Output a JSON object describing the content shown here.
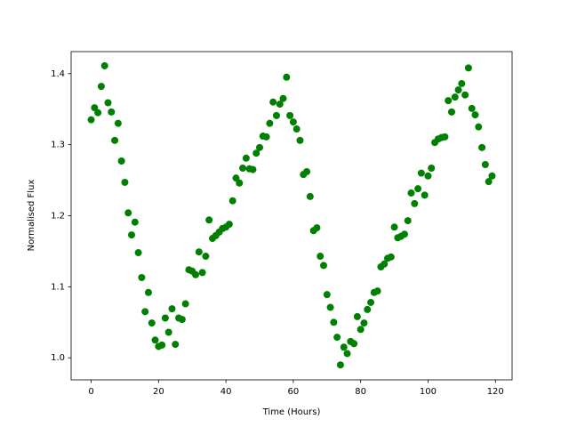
{
  "chart_data": {
    "type": "scatter",
    "xlabel": "Time (Hours)",
    "ylabel": "Normalised Flux",
    "x": [
      0,
      1,
      2,
      3,
      4,
      5,
      6,
      7,
      8,
      9,
      10,
      11,
      12,
      13,
      14,
      15,
      16,
      17,
      18,
      19,
      20,
      21,
      22,
      23,
      24,
      25,
      26,
      27,
      28,
      29,
      30,
      31,
      32,
      33,
      34,
      35,
      36,
      37,
      38,
      39,
      40,
      41,
      42,
      43,
      44,
      45,
      46,
      47,
      48,
      49,
      50,
      51,
      52,
      53,
      54,
      55,
      56,
      57,
      58,
      59,
      60,
      61,
      62,
      63,
      64,
      65,
      66,
      67,
      68,
      69,
      70,
      71,
      72,
      73,
      74,
      75,
      76,
      77,
      78,
      79,
      80,
      81,
      82,
      83,
      84,
      85,
      86,
      87,
      88,
      89,
      90,
      91,
      92,
      93,
      94,
      95,
      96,
      97,
      98,
      99,
      100,
      101,
      102,
      103,
      104,
      105,
      106,
      107,
      108,
      109,
      110,
      111,
      112,
      113,
      114,
      115,
      116,
      117,
      118,
      119
    ],
    "series": [
      {
        "color": "#008000",
        "values": [
          1.335,
          1.352,
          1.345,
          1.382,
          1.411,
          1.359,
          1.346,
          1.306,
          1.33,
          1.277,
          1.247,
          1.204,
          1.173,
          1.191,
          1.148,
          1.113,
          1.065,
          1.092,
          1.049,
          1.025,
          1.016,
          1.018,
          1.056,
          1.036,
          1.069,
          1.019,
          1.056,
          1.054,
          1.076,
          1.124,
          1.122,
          1.117,
          1.149,
          1.12,
          1.143,
          1.194,
          1.168,
          1.172,
          1.177,
          1.182,
          1.184,
          1.188,
          1.221,
          1.253,
          1.246,
          1.267,
          1.281,
          1.266,
          1.265,
          1.288,
          1.296,
          1.312,
          1.311,
          1.33,
          1.36,
          1.341,
          1.357,
          1.365,
          1.395,
          1.341,
          1.332,
          1.322,
          1.306,
          1.258,
          1.262,
          1.227,
          1.179,
          1.183,
          1.143,
          1.13,
          1.089,
          1.071,
          1.05,
          1.029,
          0.99,
          1.015,
          1.006,
          1.023,
          1.02,
          1.058,
          1.04,
          1.049,
          1.068,
          1.078,
          1.092,
          1.094,
          1.128,
          1.132,
          1.14,
          1.142,
          1.184,
          1.169,
          1.171,
          1.174,
          1.193,
          1.232,
          1.217,
          1.238,
          1.26,
          1.229,
          1.256,
          1.267,
          1.303,
          1.308,
          1.31,
          1.311,
          1.362,
          1.346,
          1.367,
          1.377,
          1.386,
          1.37,
          1.408,
          1.351,
          1.342,
          1.325,
          1.296,
          1.272,
          1.248,
          1.256
        ]
      }
    ],
    "xlim": [
      -5.95,
      124.95
    ],
    "xticks": [
      0,
      20,
      40,
      60,
      80,
      100,
      120
    ],
    "ylim": [
      0.969,
      1.431
    ],
    "yticks": [
      {
        "value": 1,
        "label": "1.0"
      },
      1.1,
      1.2,
      1.3,
      1.4
    ]
  }
}
